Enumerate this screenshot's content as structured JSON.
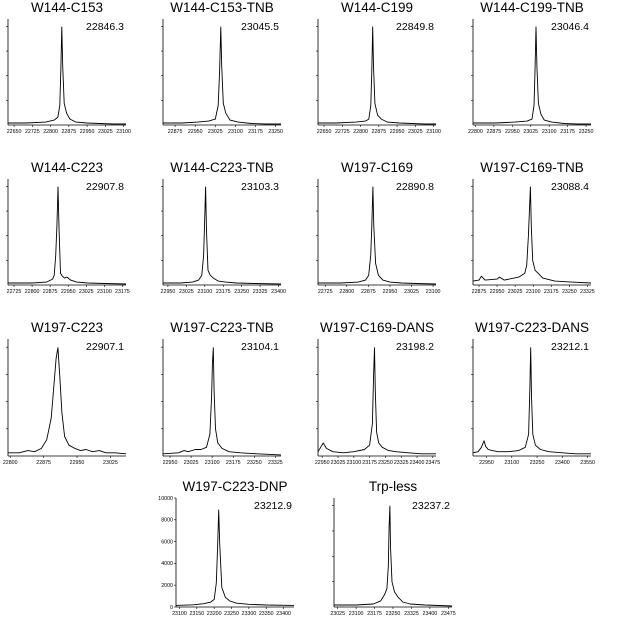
{
  "chart_data": [
    {
      "type": "line",
      "title": "W144-C153",
      "peak_label": "22846.3",
      "x_ticks": [
        "22650",
        "22725",
        "22800",
        "22875",
        "22950",
        "23025",
        "23100"
      ],
      "xlim": [
        22625,
        23110
      ],
      "x": [
        22625,
        22700,
        22780,
        22815,
        22830,
        22838,
        22842,
        22846.3,
        22850,
        22856,
        22866,
        22880,
        22905,
        22950,
        23000,
        23060,
        23110
      ],
      "y": [
        0.02,
        0.02,
        0.03,
        0.05,
        0.08,
        0.2,
        0.55,
        1.0,
        0.6,
        0.22,
        0.12,
        0.06,
        0.03,
        0.02,
        0.015,
        0.01,
        0.01
      ]
    },
    {
      "type": "line",
      "title": "W144-C153-TNB",
      "peak_label": "23045.5",
      "x_ticks": [
        "22875",
        "22950",
        "23025",
        "23100",
        "23175",
        "23250"
      ],
      "xlim": [
        22830,
        23270
      ],
      "x": [
        22830,
        22900,
        22960,
        23000,
        23025,
        23036,
        23041,
        23045.5,
        23049,
        23055,
        23064,
        23080,
        23110,
        23160,
        23210,
        23270
      ],
      "y": [
        0.02,
        0.02,
        0.03,
        0.04,
        0.06,
        0.2,
        0.55,
        1.0,
        0.6,
        0.22,
        0.12,
        0.05,
        0.03,
        0.015,
        0.01,
        0.01
      ]
    },
    {
      "type": "line",
      "title": "W144-C199",
      "peak_label": "22849.8",
      "x_ticks": [
        "22650",
        "22725",
        "22800",
        "22875",
        "22950",
        "23025",
        "23100"
      ],
      "xlim": [
        22625,
        23110
      ],
      "x": [
        22625,
        22700,
        22780,
        22820,
        22834,
        22842,
        22846,
        22849.8,
        22853,
        22859,
        22870,
        22885,
        22910,
        22960,
        23010,
        23060,
        23110
      ],
      "y": [
        0.02,
        0.02,
        0.03,
        0.04,
        0.06,
        0.2,
        0.55,
        1.0,
        0.6,
        0.22,
        0.1,
        0.06,
        0.03,
        0.02,
        0.015,
        0.01,
        0.01
      ]
    },
    {
      "type": "line",
      "title": "W144-C199-TNB",
      "peak_label": "23046.4",
      "x_ticks": [
        "22800",
        "22875",
        "22950",
        "23025",
        "23100",
        "23175",
        "23250"
      ],
      "xlim": [
        22790,
        23270
      ],
      "x": [
        22790,
        22880,
        22960,
        23010,
        23030,
        23038,
        23042,
        23046.4,
        23050,
        23056,
        23066,
        23080,
        23110,
        23160,
        23210,
        23270
      ],
      "y": [
        0.02,
        0.02,
        0.03,
        0.04,
        0.06,
        0.2,
        0.55,
        1.0,
        0.6,
        0.22,
        0.11,
        0.05,
        0.03,
        0.015,
        0.01,
        0.01
      ]
    },
    {
      "type": "line",
      "title": "W144-C223",
      "peak_label": "22907.8",
      "x_ticks": [
        "22725",
        "22800",
        "22875",
        "22950",
        "23025",
        "23100",
        "23175"
      ],
      "xlim": [
        22700,
        23190
      ],
      "x": [
        22700,
        22800,
        22860,
        22885,
        22892,
        22898,
        22903,
        22907.8,
        22912,
        22918,
        22926,
        22934,
        22945,
        22960,
        22985,
        23030,
        23100,
        23190
      ],
      "y": [
        0.02,
        0.02,
        0.03,
        0.06,
        0.1,
        0.3,
        0.6,
        1.0,
        0.55,
        0.12,
        0.09,
        0.07,
        0.08,
        0.05,
        0.03,
        0.02,
        0.015,
        0.01
      ]
    },
    {
      "type": "line",
      "title": "W144-C223-TNB",
      "peak_label": "23103.3",
      "x_ticks": [
        "22950",
        "23025",
        "23100",
        "23175",
        "23250",
        "23325",
        "23400"
      ],
      "xlim": [
        22930,
        23410
      ],
      "x": [
        22930,
        23000,
        23050,
        23075,
        23088,
        23095,
        23099,
        23103.3,
        23107,
        23113,
        23122,
        23135,
        23155,
        23185,
        23230,
        23300,
        23410
      ],
      "y": [
        0.02,
        0.02,
        0.03,
        0.05,
        0.1,
        0.3,
        0.6,
        1.0,
        0.55,
        0.15,
        0.1,
        0.07,
        0.04,
        0.03,
        0.02,
        0.015,
        0.01
      ]
    },
    {
      "type": "line",
      "title": "W197-C169",
      "peak_label": "22890.8",
      "x_ticks": [
        "22725",
        "22800",
        "22875",
        "22950",
        "23025",
        "23100"
      ],
      "xlim": [
        22700,
        23110
      ],
      "x": [
        22700,
        22780,
        22840,
        22865,
        22876,
        22883,
        22887,
        22890.8,
        22894,
        22900,
        22910,
        22925,
        22950,
        22990,
        23040,
        23110
      ],
      "y": [
        0.02,
        0.02,
        0.03,
        0.05,
        0.1,
        0.3,
        0.6,
        1.0,
        0.6,
        0.22,
        0.1,
        0.05,
        0.03,
        0.02,
        0.015,
        0.01
      ]
    },
    {
      "type": "line",
      "title": "W197-C169-TNB",
      "peak_label": "23088.4",
      "x_ticks": [
        "22875",
        "22950",
        "23025",
        "23100",
        "23175",
        "23250",
        "23325"
      ],
      "xlim": [
        22850,
        23340
      ],
      "x": [
        22850,
        22875,
        22885,
        22900,
        22950,
        22960,
        22980,
        23040,
        23065,
        23073,
        23080,
        23085,
        23088.4,
        23092,
        23098,
        23108,
        23120,
        23140,
        23190,
        23260,
        23340
      ],
      "y": [
        0.04,
        0.05,
        0.09,
        0.05,
        0.06,
        0.08,
        0.05,
        0.08,
        0.12,
        0.2,
        0.5,
        0.8,
        1.0,
        0.6,
        0.25,
        0.15,
        0.12,
        0.07,
        0.04,
        0.03,
        0.02
      ]
    },
    {
      "type": "line",
      "title": "W197-C223",
      "peak_label": "22907.1",
      "x_ticks": [
        "22800",
        "22875",
        "22950",
        "23025"
      ],
      "xlim": [
        22795,
        23060
      ],
      "x": [
        22795,
        22820,
        22840,
        22855,
        22870,
        22882,
        22892,
        22898,
        22903,
        22907.1,
        22911,
        22916,
        22922,
        22932,
        22945,
        22958,
        22970,
        22985,
        23000,
        23015,
        23035,
        23060
      ],
      "y": [
        0.03,
        0.03,
        0.05,
        0.04,
        0.07,
        0.15,
        0.35,
        0.65,
        0.9,
        1.0,
        0.75,
        0.4,
        0.18,
        0.1,
        0.07,
        0.05,
        0.06,
        0.04,
        0.05,
        0.03,
        0.03,
        0.02
      ]
    },
    {
      "type": "line",
      "title": "W197-C223-TNB",
      "peak_label": "23104.1",
      "x_ticks": [
        "22950",
        "23025",
        "23100",
        "23175",
        "23250",
        "23325"
      ],
      "xlim": [
        22925,
        23345
      ],
      "x": [
        22925,
        22980,
        23000,
        23015,
        23040,
        23060,
        23080,
        23092,
        23098,
        23101,
        23104.1,
        23107,
        23112,
        23120,
        23135,
        23160,
        23200,
        23260,
        23345
      ],
      "y": [
        0.02,
        0.03,
        0.05,
        0.04,
        0.06,
        0.06,
        0.08,
        0.2,
        0.55,
        0.85,
        1.0,
        0.6,
        0.25,
        0.12,
        0.07,
        0.04,
        0.03,
        0.02,
        0.01
      ]
    },
    {
      "type": "line",
      "title": "W197-C169-DANS",
      "peak_label": "23198.2",
      "x_ticks": [
        "22950",
        "23025",
        "23100",
        "23175",
        "23250",
        "23325",
        "23400",
        "23475"
      ],
      "xlim": [
        22930,
        23490
      ],
      "x": [
        22930,
        22945,
        22955,
        22970,
        23000,
        23050,
        23100,
        23150,
        23175,
        23188,
        23194,
        23198.2,
        23202,
        23208,
        23218,
        23235,
        23265,
        23300,
        23360,
        23420,
        23490
      ],
      "y": [
        0.04,
        0.09,
        0.12,
        0.07,
        0.04,
        0.03,
        0.04,
        0.06,
        0.1,
        0.3,
        0.75,
        1.0,
        0.6,
        0.22,
        0.12,
        0.08,
        0.05,
        0.04,
        0.03,
        0.02,
        0.02
      ]
    },
    {
      "type": "line",
      "title": "W197-C223-DANS",
      "peak_label": "23212.1",
      "x_ticks": [
        "22950",
        "23100",
        "23250",
        "23400",
        "23550"
      ],
      "xlim": [
        22870,
        23570
      ],
      "x": [
        22870,
        22900,
        22920,
        22935,
        22945,
        22960,
        22985,
        23020,
        23080,
        23140,
        23180,
        23200,
        23207,
        23212.1,
        23217,
        23225,
        23240,
        23270,
        23320,
        23400,
        23480,
        23570
      ],
      "y": [
        0.03,
        0.04,
        0.08,
        0.14,
        0.09,
        0.06,
        0.05,
        0.04,
        0.04,
        0.05,
        0.08,
        0.2,
        0.6,
        1.0,
        0.55,
        0.2,
        0.1,
        0.06,
        0.04,
        0.03,
        0.02,
        0.02
      ]
    },
    {
      "type": "line",
      "title": "W197-C223-DNP",
      "peak_label": "23212.9",
      "x_ticks": [
        "23100",
        "23150",
        "23200",
        "23250",
        "23300",
        "23350",
        "23400"
      ],
      "y_ticks": [
        "0",
        "2000",
        "4000",
        "6000",
        "8000",
        "10000"
      ],
      "xlim": [
        23090,
        23430
      ],
      "ylim": [
        0,
        10000
      ],
      "x": [
        23090,
        23140,
        23170,
        23190,
        23200,
        23206,
        23210,
        23212.9,
        23216,
        23222,
        23232,
        23245,
        23265,
        23300,
        23350,
        23430
      ],
      "y": [
        150,
        200,
        300,
        450,
        700,
        2200,
        5500,
        8900,
        5800,
        1800,
        900,
        550,
        350,
        250,
        180,
        150
      ]
    },
    {
      "type": "line",
      "title": "Trp-less",
      "peak_label": "23237.2",
      "x_ticks": [
        "23025",
        "23100",
        "23175",
        "23250",
        "23325",
        "23400",
        "23475"
      ],
      "xlim": [
        23010,
        23490
      ],
      "x": [
        23010,
        23100,
        23170,
        23200,
        23215,
        23225,
        23231,
        23234,
        23237.2,
        23240,
        23246,
        23256,
        23270,
        23290,
        23320,
        23380,
        23490
      ],
      "y": [
        0.02,
        0.02,
        0.03,
        0.06,
        0.12,
        0.18,
        0.4,
        0.8,
        1.0,
        0.6,
        0.25,
        0.15,
        0.1,
        0.05,
        0.03,
        0.02,
        0.01
      ]
    }
  ]
}
